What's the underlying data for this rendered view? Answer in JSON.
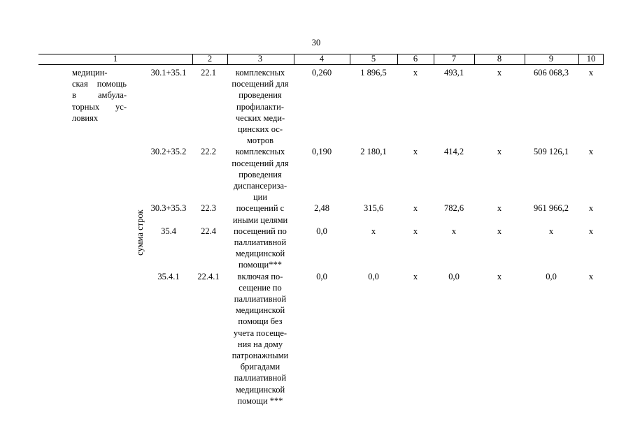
{
  "page_number": "30",
  "header": [
    "1",
    "2",
    "3",
    "4",
    "5",
    "6",
    "7",
    "8",
    "9",
    "10"
  ],
  "group_label": [
    "медицин-",
    "ская помощь",
    "в амбула-",
    "торных ус-",
    "ловиях"
  ],
  "sum_label": "сумма строк",
  "rows": [
    {
      "codes": "30.1+35.1",
      "row": "22.1",
      "name": [
        "комплексных",
        "посещений для",
        "проведения",
        "профилакти-",
        "ческих меди-",
        "цинских ос-",
        "мотров"
      ],
      "values": [
        "0,260",
        "1 896,5",
        "х",
        "493,1",
        "х",
        "606 068,3",
        "х"
      ]
    },
    {
      "codes": "30.2+35.2",
      "row": "22.2",
      "name": [
        "комплексных",
        "посещений для",
        "проведения",
        "диспансериза-",
        "ции"
      ],
      "values": [
        "0,190",
        "2 180,1",
        "х",
        "414,2",
        "х",
        "509 126,1",
        "х"
      ]
    },
    {
      "codes": "30.3+35.3",
      "row": "22.3",
      "name": [
        "посещений с",
        "иными целями"
      ],
      "values": [
        "2,48",
        "315,6",
        "х",
        "782,6",
        "х",
        "961 966,2",
        "х"
      ]
    },
    {
      "codes": "35.4",
      "row": "22.4",
      "name": [
        "посещений по",
        "паллиативной",
        "медицинской",
        "помощи***"
      ],
      "values": [
        "0,0",
        "х",
        "х",
        "х",
        "х",
        "х",
        "х"
      ]
    },
    {
      "codes": "35.4.1",
      "row": "22.4.1",
      "name": [
        "включая по-",
        "сещение по",
        "паллиативной",
        "медицинской",
        "помощи без",
        "учета посеще-",
        "ния на дому",
        "патронажными",
        "бригадами",
        "паллиативной",
        "медицинской",
        "помощи ***"
      ],
      "values": [
        "0,0",
        "0,0",
        "х",
        "0,0",
        "х",
        "0,0",
        "х"
      ]
    }
  ]
}
